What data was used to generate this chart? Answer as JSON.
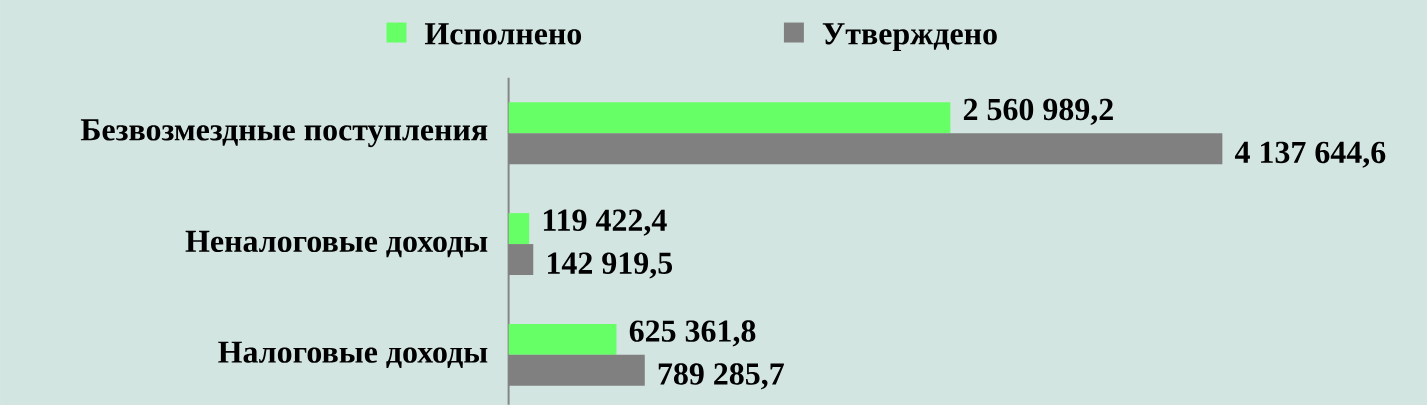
{
  "chart_data": {
    "type": "bar",
    "orientation": "horizontal",
    "categories": [
      "Безвозмездные поступления",
      "Неналоговые доходы",
      "Налоговые доходы"
    ],
    "series": [
      {
        "name": "Исполнено",
        "color": "#66ff66",
        "values": [
          2560989.2,
          119422.4,
          625361.8
        ],
        "value_labels": [
          "2 560 989,2",
          "119 422,4",
          "625 361,8"
        ]
      },
      {
        "name": "Утверждено",
        "color": "#808080",
        "values": [
          4137644.6,
          142919.5,
          789285.7
        ],
        "value_labels": [
          "4 137 644,6",
          "142 919,5",
          "789 285,7"
        ]
      }
    ],
    "legend": "top",
    "tick_labels": "y"
  }
}
